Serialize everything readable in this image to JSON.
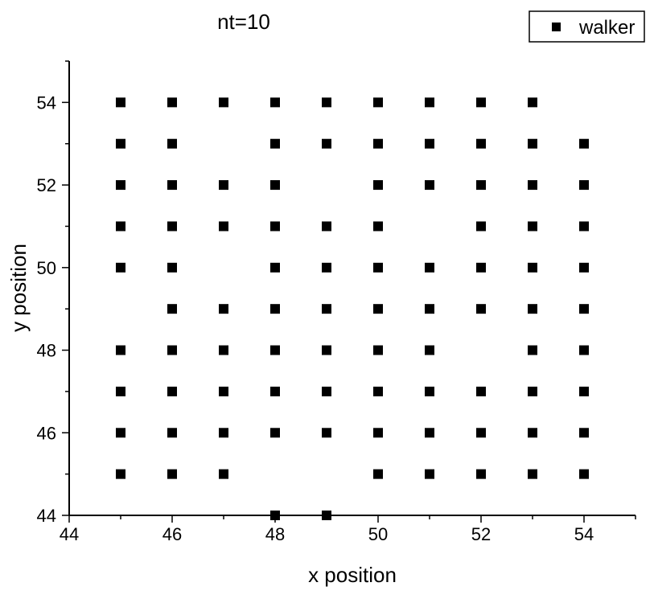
{
  "chart_data": {
    "type": "scatter",
    "title": "nt=10",
    "xlabel": "x position",
    "ylabel": "y position",
    "xlim": [
      44,
      55
    ],
    "ylim": [
      44,
      55
    ],
    "xticks": [
      44,
      46,
      48,
      50,
      52,
      54
    ],
    "yticks": [
      44,
      46,
      48,
      50,
      52,
      54
    ],
    "legend_position": "top-right",
    "marker": "square",
    "marker_color": "#000000",
    "series": [
      {
        "name": "walker",
        "points": [
          [
            45,
            54
          ],
          [
            46,
            54
          ],
          [
            47,
            54
          ],
          [
            48,
            54
          ],
          [
            49,
            54
          ],
          [
            50,
            54
          ],
          [
            51,
            54
          ],
          [
            52,
            54
          ],
          [
            53,
            54
          ],
          [
            45,
            53
          ],
          [
            46,
            53
          ],
          [
            48,
            53
          ],
          [
            49,
            53
          ],
          [
            50,
            53
          ],
          [
            51,
            53
          ],
          [
            52,
            53
          ],
          [
            53,
            53
          ],
          [
            54,
            53
          ],
          [
            45,
            52
          ],
          [
            46,
            52
          ],
          [
            47,
            52
          ],
          [
            48,
            52
          ],
          [
            50,
            52
          ],
          [
            51,
            52
          ],
          [
            52,
            52
          ],
          [
            53,
            52
          ],
          [
            54,
            52
          ],
          [
            45,
            51
          ],
          [
            46,
            51
          ],
          [
            47,
            51
          ],
          [
            48,
            51
          ],
          [
            49,
            51
          ],
          [
            50,
            51
          ],
          [
            52,
            51
          ],
          [
            53,
            51
          ],
          [
            54,
            51
          ],
          [
            45,
            50
          ],
          [
            46,
            50
          ],
          [
            48,
            50
          ],
          [
            49,
            50
          ],
          [
            50,
            50
          ],
          [
            51,
            50
          ],
          [
            52,
            50
          ],
          [
            53,
            50
          ],
          [
            54,
            50
          ],
          [
            46,
            49
          ],
          [
            47,
            49
          ],
          [
            48,
            49
          ],
          [
            49,
            49
          ],
          [
            50,
            49
          ],
          [
            51,
            49
          ],
          [
            52,
            49
          ],
          [
            53,
            49
          ],
          [
            54,
            49
          ],
          [
            45,
            48
          ],
          [
            46,
            48
          ],
          [
            47,
            48
          ],
          [
            48,
            48
          ],
          [
            49,
            48
          ],
          [
            50,
            48
          ],
          [
            51,
            48
          ],
          [
            53,
            48
          ],
          [
            54,
            48
          ],
          [
            45,
            47
          ],
          [
            46,
            47
          ],
          [
            47,
            47
          ],
          [
            48,
            47
          ],
          [
            49,
            47
          ],
          [
            50,
            47
          ],
          [
            51,
            47
          ],
          [
            52,
            47
          ],
          [
            53,
            47
          ],
          [
            54,
            47
          ],
          [
            45,
            46
          ],
          [
            46,
            46
          ],
          [
            47,
            46
          ],
          [
            48,
            46
          ],
          [
            49,
            46
          ],
          [
            50,
            46
          ],
          [
            51,
            46
          ],
          [
            52,
            46
          ],
          [
            53,
            46
          ],
          [
            54,
            46
          ],
          [
            45,
            45
          ],
          [
            46,
            45
          ],
          [
            47,
            45
          ],
          [
            50,
            45
          ],
          [
            51,
            45
          ],
          [
            52,
            45
          ],
          [
            53,
            45
          ],
          [
            54,
            45
          ],
          [
            48,
            44
          ],
          [
            49,
            44
          ]
        ]
      }
    ]
  }
}
